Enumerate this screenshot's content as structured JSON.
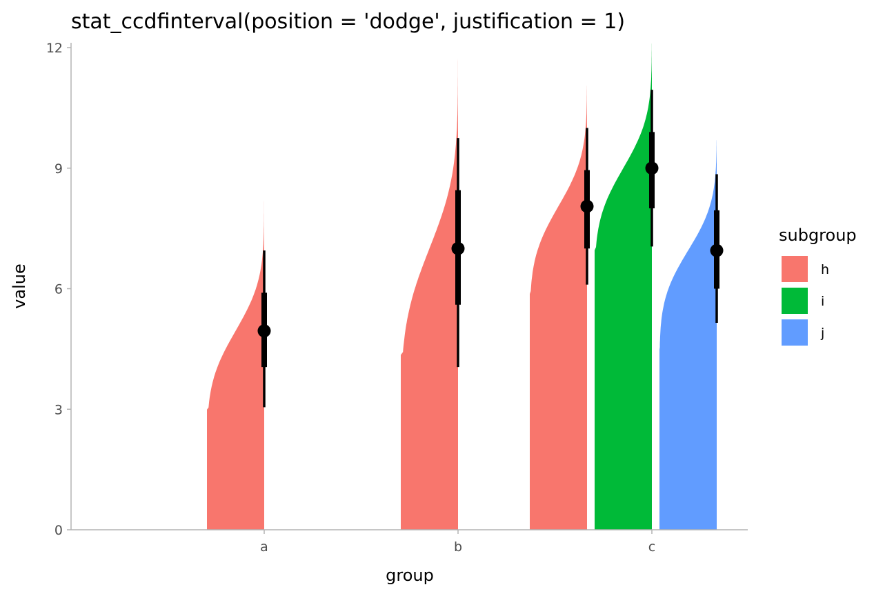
{
  "chart_data": {
    "type": "area",
    "title": "stat_ccdfinterval(position = 'dodge', justification = 1)",
    "xlabel": "group",
    "ylabel": "value",
    "categories": [
      "a",
      "b",
      "c"
    ],
    "ylim": [
      0,
      12
    ],
    "yticks": [
      0,
      3,
      6,
      9,
      12
    ],
    "grid": false,
    "legend": {
      "title": "subgroup",
      "position": "right",
      "entries": [
        {
          "label": "h",
          "color": "#F8766D"
        },
        {
          "label": "i",
          "color": "#00BA38"
        },
        {
          "label": "j",
          "color": "#619CFF"
        }
      ]
    },
    "series": [
      {
        "group": "a",
        "subgroup": "h",
        "color": "#F8766D",
        "median": 4.95,
        "interval_66": [
          4.05,
          5.9
        ],
        "interval_95": [
          3.05,
          6.95
        ],
        "dist_min": 3.0,
        "dist_max": 8.25
      },
      {
        "group": "b",
        "subgroup": "h",
        "color": "#F8766D",
        "median": 7.0,
        "interval_66": [
          5.6,
          8.45
        ],
        "interval_95": [
          4.05,
          9.75
        ],
        "dist_min": 4.4,
        "dist_max": 11.8
      },
      {
        "group": "c",
        "subgroup": "h",
        "color": "#F8766D",
        "median": 8.05,
        "interval_66": [
          7.0,
          8.95
        ],
        "interval_95": [
          6.1,
          10.0
        ],
        "dist_min": 5.9,
        "dist_max": 11.05
      },
      {
        "group": "c",
        "subgroup": "i",
        "color": "#00BA38",
        "median": 9.0,
        "interval_66": [
          8.0,
          9.9
        ],
        "interval_95": [
          7.05,
          10.95
        ],
        "dist_min": 7.0,
        "dist_max": 12.1
      },
      {
        "group": "c",
        "subgroup": "j",
        "color": "#619CFF",
        "median": 6.95,
        "interval_66": [
          6.0,
          7.95
        ],
        "interval_95": [
          5.15,
          8.85
        ],
        "dist_min": 4.5,
        "dist_max": 9.7
      }
    ]
  }
}
